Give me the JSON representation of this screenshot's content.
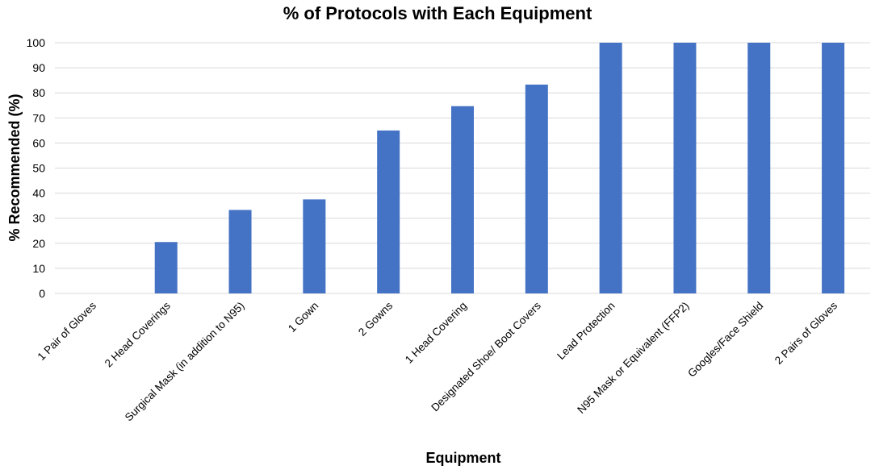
{
  "chart_data": {
    "type": "bar",
    "title": "% of Protocols with Each Equipment",
    "xlabel": "Equipment",
    "ylabel": "% Recommended (%)",
    "ylim": [
      0,
      100
    ],
    "yticks": [
      0,
      10,
      20,
      30,
      40,
      50,
      60,
      70,
      80,
      90,
      100
    ],
    "grid": true,
    "legend": "none",
    "bar_color": "#4472C4",
    "categories": [
      "1 Pair of Gloves",
      "2 Head Coverings",
      "Surgical Mask (in addition to N95)",
      "1 Gown",
      "2 Gowns",
      "1 Head Covering",
      "Designated Shoe/ Boot Covers",
      "Lead Protection",
      "N95 Mask or Equivalent (FFP2)",
      "Googles/Face Shield",
      "2 Pairs of Gloves"
    ],
    "values": [
      0,
      20.5,
      33.3,
      37.5,
      65,
      74.7,
      83.3,
      100,
      100,
      100,
      100
    ]
  }
}
